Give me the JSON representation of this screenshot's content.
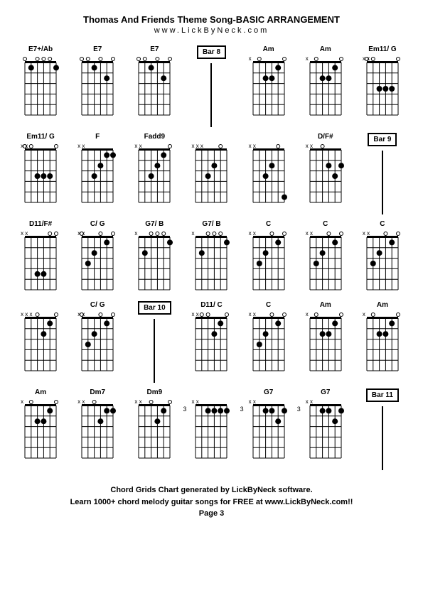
{
  "title": "Thomas And Friends Theme Song-BASIC ARRANGEMENT",
  "subtitle": "www.LickByNeck.com",
  "footer_line1": "Chord Grids Chart generated by LickByNeck software.",
  "footer_line2": "Learn 1000+ chord melody guitar songs for FREE at www.LickByNeck.com!!",
  "page": "Page 3",
  "diagram": {
    "width": 60,
    "height": 90,
    "strings": 6,
    "frets": 5,
    "line_color": "#000",
    "dot_color": "#000",
    "open_color": "#000"
  },
  "cells": [
    {
      "type": "chord",
      "name": "E7+/Ab",
      "muted": "",
      "dots": [
        [
          1,
          1
        ],
        [
          5,
          1
        ]
      ],
      "opens": [
        2,
        3,
        4,
        6
      ],
      "fretNum": ""
    },
    {
      "type": "chord",
      "name": "E7",
      "muted": "",
      "dots": [
        [
          2,
          2
        ],
        [
          4,
          1
        ]
      ],
      "opens": [
        1,
        3,
        5,
        6
      ],
      "fretNum": ""
    },
    {
      "type": "chord",
      "name": "E7",
      "muted": "",
      "dots": [
        [
          2,
          2
        ],
        [
          4,
          1
        ]
      ],
      "opens": [
        1,
        3,
        5,
        6
      ],
      "fretNum": ""
    },
    {
      "type": "bar",
      "label": "Bar 8"
    },
    {
      "type": "chord",
      "name": "Am",
      "muted": "x",
      "dots": [
        [
          2,
          1
        ],
        [
          3,
          2
        ],
        [
          4,
          2
        ]
      ],
      "opens": [
        1,
        5
      ],
      "fretNum": ""
    },
    {
      "type": "chord",
      "name": "Am",
      "muted": "x",
      "dots": [
        [
          2,
          1
        ],
        [
          3,
          2
        ],
        [
          4,
          2
        ]
      ],
      "opens": [
        1,
        5
      ],
      "fretNum": ""
    },
    {
      "type": "chord",
      "name": "Em11/ G",
      "muted": "xx",
      "dots": [
        [
          2,
          3
        ],
        [
          3,
          3
        ],
        [
          4,
          3
        ]
      ],
      "opens": [
        1,
        5,
        6
      ],
      "fretNum": ""
    },
    {
      "type": "chord",
      "name": "Em11/ G",
      "muted": "xx",
      "dots": [
        [
          2,
          3
        ],
        [
          3,
          3
        ],
        [
          4,
          3
        ]
      ],
      "opens": [
        1,
        5,
        6
      ],
      "fretNum": ""
    },
    {
      "type": "chord",
      "name": "F",
      "muted": "xx",
      "dots": [
        [
          1,
          1
        ],
        [
          2,
          1
        ],
        [
          3,
          2
        ],
        [
          4,
          3
        ]
      ],
      "opens": [],
      "fretNum": ""
    },
    {
      "type": "chord",
      "name": "Fadd9",
      "muted": "xx",
      "dots": [
        [
          2,
          1
        ],
        [
          3,
          2
        ],
        [
          4,
          3
        ]
      ],
      "opens": [
        1
      ],
      "fretNum": ""
    },
    {
      "type": "chord",
      "name": "",
      "muted": "xxx",
      "dots": [
        [
          3,
          2
        ],
        [
          4,
          3
        ]
      ],
      "opens": [
        2
      ],
      "fretNum": ""
    },
    {
      "type": "chord",
      "name": "",
      "muted": "xx",
      "dots": [
        [
          3,
          2
        ],
        [
          4,
          3
        ],
        [
          1,
          5
        ]
      ],
      "opens": [
        2
      ],
      "fretNum": ""
    },
    {
      "type": "chord",
      "name": "D/F#",
      "muted": "xx",
      "dots": [
        [
          2,
          3
        ],
        [
          3,
          2
        ],
        [
          1,
          2
        ]
      ],
      "opens": [
        4
      ],
      "fretNum": ""
    },
    {
      "type": "bar",
      "label": "Bar 9"
    },
    {
      "type": "chord",
      "name": "D11/F#",
      "muted": "xx",
      "dots": [
        [
          3,
          4
        ],
        [
          4,
          4
        ]
      ],
      "opens": [
        1,
        2
      ],
      "fretNum": ""
    },
    {
      "type": "chord",
      "name": "C/ G",
      "muted": "xx",
      "dots": [
        [
          2,
          1
        ],
        [
          4,
          2
        ],
        [
          5,
          3
        ]
      ],
      "opens": [
        1,
        3,
        6
      ],
      "fretNum": ""
    },
    {
      "type": "chord",
      "name": "G7/ B",
      "muted": "x",
      "dots": [
        [
          1,
          1
        ],
        [
          5,
          2
        ]
      ],
      "opens": [
        2,
        3,
        4
      ],
      "fretNum": ""
    },
    {
      "type": "chord",
      "name": "G7/ B",
      "muted": "x",
      "dots": [
        [
          1,
          1
        ],
        [
          5,
          2
        ]
      ],
      "opens": [
        2,
        3,
        4
      ],
      "fretNum": ""
    },
    {
      "type": "chord",
      "name": "C",
      "muted": "xx",
      "dots": [
        [
          2,
          1
        ],
        [
          4,
          2
        ],
        [
          5,
          3
        ]
      ],
      "opens": [
        1,
        3
      ],
      "fretNum": ""
    },
    {
      "type": "chord",
      "name": "C",
      "muted": "xx",
      "dots": [
        [
          2,
          1
        ],
        [
          4,
          2
        ],
        [
          5,
          3
        ]
      ],
      "opens": [
        1,
        3
      ],
      "fretNum": ""
    },
    {
      "type": "chord",
      "name": "C",
      "muted": "xx",
      "dots": [
        [
          2,
          1
        ],
        [
          4,
          2
        ],
        [
          5,
          3
        ]
      ],
      "opens": [
        1,
        3
      ],
      "fretNum": ""
    },
    {
      "type": "chord",
      "name": "",
      "muted": "xxx",
      "dots": [
        [
          2,
          1
        ],
        [
          3,
          2
        ]
      ],
      "opens": [
        1,
        4
      ],
      "fretNum": ""
    },
    {
      "type": "chord",
      "name": "C/ G",
      "muted": "xx",
      "dots": [
        [
          2,
          1
        ],
        [
          4,
          2
        ],
        [
          5,
          3
        ]
      ],
      "opens": [
        1,
        3,
        6
      ],
      "fretNum": ""
    },
    {
      "type": "bar",
      "label": "Bar 10"
    },
    {
      "type": "chord",
      "name": "D11/ C",
      "muted": "xx",
      "dots": [
        [
          2,
          1
        ],
        [
          3,
          2
        ]
      ],
      "opens": [
        1,
        4,
        5
      ],
      "fretNum": ""
    },
    {
      "type": "chord",
      "name": "C",
      "muted": "xx",
      "dots": [
        [
          2,
          1
        ],
        [
          4,
          2
        ],
        [
          5,
          3
        ]
      ],
      "opens": [
        1,
        3
      ],
      "fretNum": ""
    },
    {
      "type": "chord",
      "name": "Am",
      "muted": "x",
      "dots": [
        [
          2,
          1
        ],
        [
          3,
          2
        ],
        [
          4,
          2
        ]
      ],
      "opens": [
        1,
        5
      ],
      "fretNum": ""
    },
    {
      "type": "chord",
      "name": "Am",
      "muted": "x",
      "dots": [
        [
          2,
          1
        ],
        [
          3,
          2
        ],
        [
          4,
          2
        ]
      ],
      "opens": [
        1,
        5
      ],
      "fretNum": ""
    },
    {
      "type": "chord",
      "name": "Am",
      "muted": "x",
      "dots": [
        [
          2,
          1
        ],
        [
          3,
          2
        ],
        [
          4,
          2
        ]
      ],
      "opens": [
        1,
        5
      ],
      "fretNum": ""
    },
    {
      "type": "chord",
      "name": "Dm7",
      "muted": "xx",
      "dots": [
        [
          1,
          1
        ],
        [
          2,
          1
        ],
        [
          3,
          2
        ]
      ],
      "opens": [
        4
      ],
      "fretNum": ""
    },
    {
      "type": "chord",
      "name": "Dm9",
      "muted": "xx",
      "dots": [
        [
          2,
          1
        ],
        [
          3,
          2
        ]
      ],
      "opens": [
        1,
        4
      ],
      "fretNum": ""
    },
    {
      "type": "chord",
      "name": "",
      "muted": "xx",
      "dots": [
        [
          1,
          1
        ],
        [
          2,
          1
        ],
        [
          3,
          1
        ],
        [
          4,
          1
        ]
      ],
      "opens": [],
      "fretNum": "3"
    },
    {
      "type": "chord",
      "name": "G7",
      "muted": "xx",
      "dots": [
        [
          1,
          1
        ],
        [
          2,
          2
        ],
        [
          3,
          1
        ],
        [
          4,
          1
        ]
      ],
      "opens": [],
      "fretNum": "3"
    },
    {
      "type": "chord",
      "name": "G7",
      "muted": "xx",
      "dots": [
        [
          1,
          1
        ],
        [
          2,
          2
        ],
        [
          3,
          1
        ],
        [
          4,
          1
        ]
      ],
      "opens": [],
      "fretNum": "3"
    },
    {
      "type": "bar",
      "label": "Bar 11"
    }
  ]
}
